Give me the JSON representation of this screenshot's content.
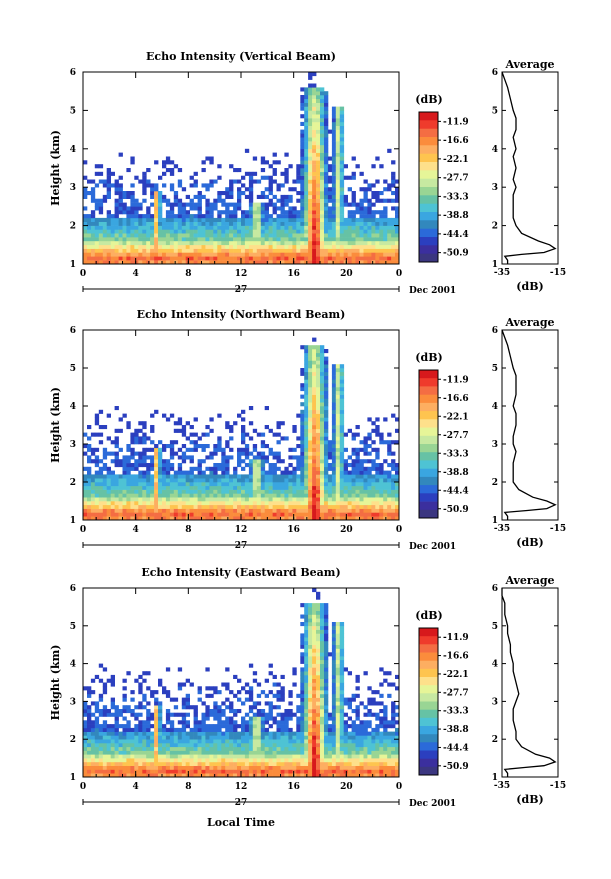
{
  "colorbar": {
    "unit": "(dB)",
    "labels": [
      "-11.9",
      "-16.6",
      "-22.1",
      "-27.7",
      "-33.3",
      "-38.8",
      "-44.4",
      "-50.9"
    ],
    "colors": [
      "#d7191c",
      "#ef3b2c",
      "#f46d43",
      "#fb8c3c",
      "#fdae61",
      "#fec44f",
      "#fee08b",
      "#e6f598",
      "#c7e9a1",
      "#99d594",
      "#66c2a5",
      "#4ec3d4",
      "#3aa6e0",
      "#3288bd",
      "#2b6ad9",
      "#2b3fbf",
      "#3b2f9e",
      "#3b3680"
    ]
  },
  "date_label": "Dec 2001",
  "x_axis_title": "Local Time",
  "chart_data": [
    {
      "type": "heatmap",
      "title": "Echo Intensity (Vertical Beam)",
      "ylabel": "Height (km)",
      "ylim": [
        1,
        6
      ],
      "xlim": [
        0,
        24
      ],
      "xticks": [
        "0",
        "4",
        "8",
        "12",
        "16",
        "20",
        "0"
      ],
      "yticks": [
        "1",
        "2",
        "3",
        "4",
        "5",
        "6"
      ],
      "day_label": "27",
      "profile": {
        "title": "Average",
        "xlabel": "(dB)",
        "xticks": [
          "-35",
          "-15"
        ],
        "xlim": [
          -35,
          -15
        ],
        "height": [
          1.0,
          1.1,
          1.2,
          1.25,
          1.3,
          1.4,
          1.5,
          1.6,
          1.8,
          2.0,
          2.2,
          2.5,
          2.8,
          3.0,
          3.2,
          3.5,
          3.8,
          4.0,
          4.3,
          4.5,
          4.8,
          5.0,
          5.3,
          5.6,
          5.8,
          6.0
        ],
        "value": [
          -33,
          -33,
          -34,
          -28,
          -20,
          -16,
          -18,
          -22,
          -28,
          -30,
          -31,
          -31,
          -31,
          -30,
          -31,
          -30,
          -31,
          -30,
          -31,
          -30,
          -30,
          -31,
          -32,
          -33,
          -34,
          -35
        ]
      }
    },
    {
      "type": "heatmap",
      "title": "Echo Intensity (Northward Beam)",
      "ylabel": "Height (km)",
      "ylim": [
        1,
        6
      ],
      "xlim": [
        0,
        24
      ],
      "xticks": [
        "0",
        "4",
        "8",
        "12",
        "16",
        "20",
        "0"
      ],
      "yticks": [
        "1",
        "2",
        "3",
        "4",
        "5",
        "6"
      ],
      "day_label": "27",
      "profile": {
        "title": "Average",
        "xlabel": "(dB)",
        "xticks": [
          "-35",
          "-15"
        ],
        "xlim": [
          -35,
          -15
        ],
        "height": [
          1.0,
          1.1,
          1.2,
          1.25,
          1.3,
          1.4,
          1.5,
          1.6,
          1.8,
          2.0,
          2.2,
          2.5,
          2.8,
          3.0,
          3.2,
          3.5,
          3.8,
          4.0,
          4.3,
          4.5,
          4.8,
          5.0,
          5.3,
          5.6,
          5.8,
          6.0
        ],
        "value": [
          -33,
          -33,
          -34,
          -26,
          -19,
          -16,
          -19,
          -24,
          -29,
          -31,
          -31,
          -31,
          -30,
          -31,
          -31,
          -30,
          -30,
          -31,
          -30,
          -30,
          -30,
          -31,
          -32,
          -33,
          -34,
          -35
        ]
      }
    },
    {
      "type": "heatmap",
      "title": "Echo Intensity (Eastward Beam)",
      "ylabel": "Height (km)",
      "ylim": [
        1,
        6
      ],
      "xlim": [
        0,
        24
      ],
      "xticks": [
        "0",
        "4",
        "8",
        "12",
        "16",
        "20",
        "0"
      ],
      "yticks": [
        "1",
        "2",
        "3",
        "4",
        "5",
        "6"
      ],
      "day_label": "27",
      "profile": {
        "title": "Average",
        "xlabel": "(dB)",
        "xticks": [
          "-35",
          "-15"
        ],
        "xlim": [
          -35,
          -15
        ],
        "height": [
          1.0,
          1.1,
          1.2,
          1.25,
          1.3,
          1.4,
          1.5,
          1.6,
          1.8,
          2.0,
          2.2,
          2.5,
          2.8,
          3.0,
          3.2,
          3.5,
          3.8,
          4.0,
          4.3,
          4.5,
          4.8,
          5.0,
          5.3,
          5.6,
          5.8,
          6.0
        ],
        "value": [
          -33,
          -33,
          -34,
          -27,
          -20,
          -16,
          -18,
          -23,
          -28,
          -30,
          -30,
          -31,
          -31,
          -30,
          -29,
          -30,
          -31,
          -31,
          -32,
          -32,
          -33,
          -33,
          -34,
          -34,
          -35,
          -35
        ]
      }
    }
  ]
}
